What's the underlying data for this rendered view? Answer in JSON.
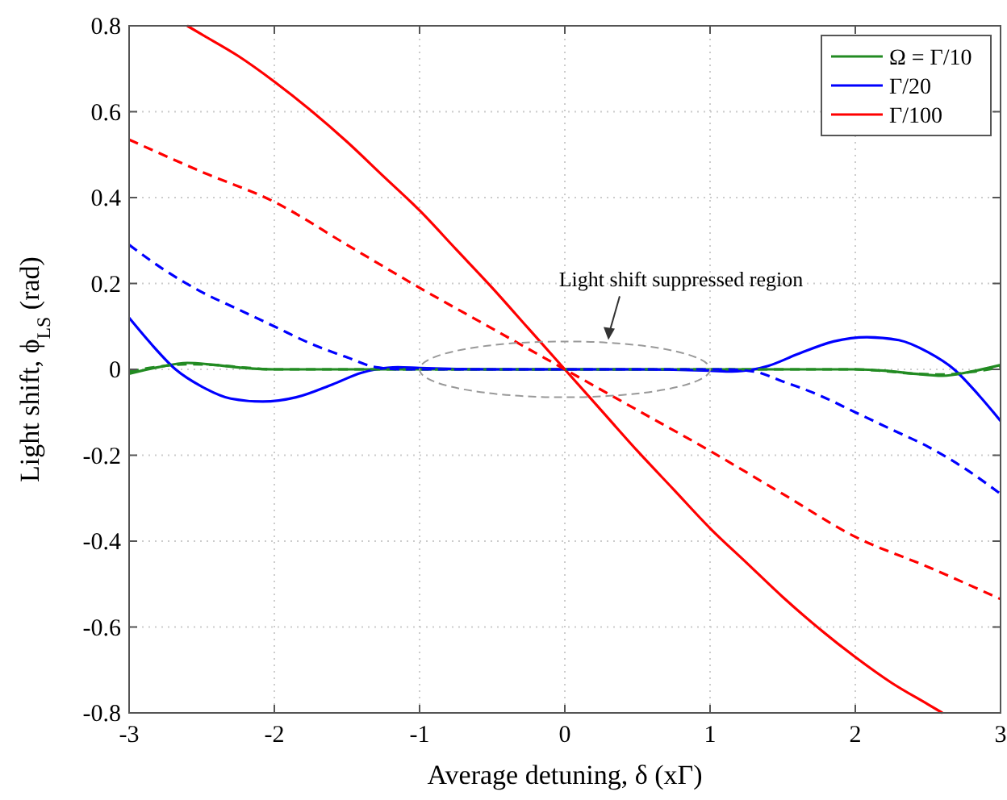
{
  "chart_data": {
    "type": "line",
    "xlabel": "Average detuning, δ (xΓ)",
    "ylabel": "Light shift, ϕ$_{LS}$ (rad)",
    "xlim": [
      -3,
      3
    ],
    "ylim": [
      -0.8,
      0.8
    ],
    "xticks": [
      -3,
      -2,
      -1,
      0,
      1,
      2,
      3
    ],
    "yticks": [
      {
        "value": -0.8,
        "label": "-0.8"
      },
      {
        "value": -0.6,
        "label": "-0.6"
      },
      {
        "value": -0.4,
        "label": "-0.4"
      },
      {
        "value": -0.2,
        "label": "-0.2"
      },
      0,
      {
        "value": 0.2,
        "label": "0.2"
      },
      {
        "value": 0.4,
        "label": "0.4"
      },
      {
        "value": 0.6,
        "label": "0.6"
      },
      {
        "value": 0.8,
        "label": "0.8"
      }
    ],
    "grid": true,
    "legend": "top right",
    "annotations": [
      "Light shift suppressed region"
    ],
    "series": [
      {
        "name": "Ω = Γ/10",
        "color": "#228b22",
        "line_style": "solid",
        "x": [
          -3,
          -2.8,
          -2.6,
          -2.4,
          -2.2,
          -2,
          -1,
          0,
          1,
          2,
          2.2,
          2.4,
          2.6,
          2.8,
          3
        ],
        "values": [
          -0.01,
          0.005,
          0.015,
          0.01,
          0.003,
          0,
          0,
          0,
          0,
          0,
          -0.003,
          -0.01,
          -0.015,
          -0.005,
          0.01
        ]
      },
      {
        "name": "Γ/20",
        "color": "#0000ff",
        "line_style": "solid",
        "x": [
          -3,
          -2.85,
          -2.68,
          -2.5,
          -2.3,
          -2.08,
          -1.85,
          -1.6,
          -1.4,
          -1.3,
          -1.15,
          -1,
          -0.5,
          0,
          0.5,
          1,
          1.15,
          1.3,
          1.4,
          1.6,
          1.85,
          2.08,
          2.3,
          2.5,
          2.68,
          2.85,
          3
        ],
        "values": [
          0.12,
          0.06,
          0,
          -0.04,
          -0.068,
          -0.075,
          -0.065,
          -0.035,
          -0.008,
          0,
          0.005,
          0.003,
          0,
          0,
          0,
          -0.003,
          -0.005,
          0,
          0.008,
          0.035,
          0.065,
          0.075,
          0.068,
          0.04,
          0,
          -0.06,
          -0.12
        ]
      },
      {
        "name": "Γ/100",
        "color": "#ff0000",
        "line_style": "solid",
        "x": [
          -2.6,
          -2.5,
          -2.25,
          -2,
          -1.5,
          -1.25,
          -1,
          -0.75,
          -0.5,
          -0.25,
          0,
          0.25,
          0.5,
          0.75,
          1,
          1.25,
          1.5,
          2,
          2.25,
          2.5,
          2.6
        ],
        "values": [
          0.8,
          0.78,
          0.73,
          0.67,
          0.53,
          0.45,
          0.37,
          0.28,
          0.19,
          0.095,
          0,
          -0.095,
          -0.19,
          -0.28,
          -0.37,
          -0.45,
          -0.53,
          -0.67,
          -0.73,
          -0.78,
          -0.8
        ]
      },
      {
        "color": "#228b22",
        "line_style": "dashed",
        "x": [
          -3,
          -2.8,
          -2.6,
          -2.4,
          -2.2,
          -2,
          0,
          2,
          2.2,
          2.4,
          2.6,
          2.8,
          3
        ],
        "values": [
          -0.005,
          0.006,
          0.012,
          0.01,
          0.004,
          0,
          0,
          0,
          -0.004,
          -0.01,
          -0.012,
          -0.006,
          0.005
        ]
      },
      {
        "color": "#0000ff",
        "line_style": "dashed",
        "x": [
          -3,
          -2.75,
          -2.5,
          -2.25,
          -2,
          -1.75,
          -1.5,
          -1.3,
          -1.1,
          0,
          1.1,
          1.3,
          1.5,
          1.75,
          2,
          2.25,
          2.5,
          2.75,
          3
        ],
        "values": [
          0.29,
          0.23,
          0.18,
          0.14,
          0.1,
          0.06,
          0.028,
          0.005,
          0,
          0,
          0,
          -0.005,
          -0.028,
          -0.06,
          -0.1,
          -0.14,
          -0.18,
          -0.23,
          -0.29
        ]
      },
      {
        "color": "#ff0000",
        "line_style": "dashed",
        "x": [
          -3,
          -2.5,
          -2,
          -1.5,
          -1,
          -0.5,
          0,
          0.5,
          1,
          1.5,
          2,
          2.5,
          3
        ],
        "values": [
          0.535,
          0.46,
          0.39,
          0.29,
          0.19,
          0.095,
          0,
          -0.095,
          -0.19,
          -0.29,
          -0.39,
          -0.46,
          -0.535
        ]
      }
    ]
  }
}
